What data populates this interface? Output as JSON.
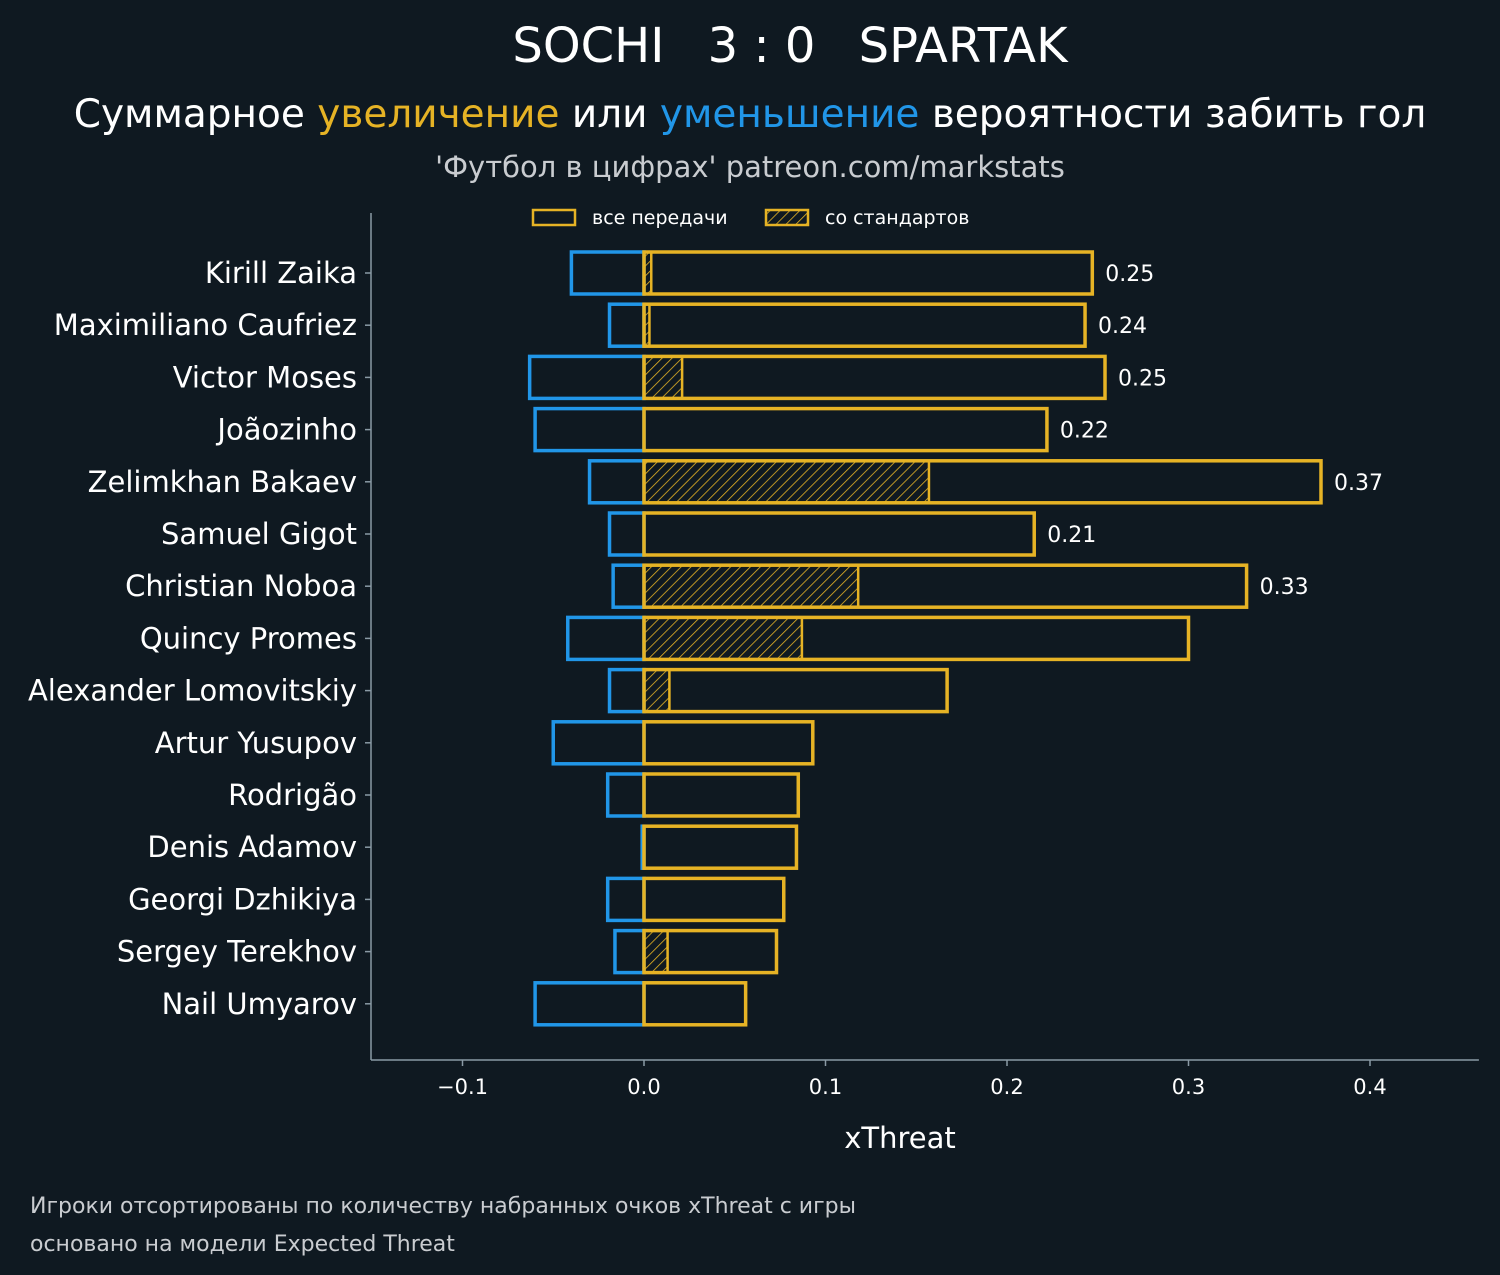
{
  "header": {
    "home_team": "SOCHI",
    "score": "3 : 0",
    "away_team": "SPARTAK",
    "subtitle_part1": "Суммарное ",
    "subtitle_increase": "увеличение",
    "subtitle_part2": " или ",
    "subtitle_decrease": "уменьшение",
    "subtitle_part3": " вероятности забить гол",
    "source": "'Футбол в цифрах' patreon.com/markstats"
  },
  "footer": {
    "note_line1": "Игроки отсортированы по количеству набранных очков xThreat с игры",
    "note_line2": "основано на модели Expected Threat"
  },
  "colors": {
    "background": "#0f1921",
    "increase": "#e6b325",
    "decrease": "#2196e8",
    "axis": "#8a9aa5"
  },
  "chart_data": {
    "type": "bar",
    "orientation": "horizontal",
    "xlabel": "xThreat",
    "xlim": [
      -0.15,
      0.46
    ],
    "xticks": [
      -0.1,
      0.0,
      0.1,
      0.2,
      0.3,
      0.4
    ],
    "xtick_labels": [
      "−0.1",
      "0.0",
      "0.1",
      "0.2",
      "0.3",
      "0.4"
    ],
    "legend": [
      {
        "label": "все передачи",
        "style": "outline"
      },
      {
        "label": "со стандартов",
        "style": "hatched"
      }
    ],
    "legend_position": "top-center",
    "categories": [
      "Kirill Zaika",
      "Maximiliano Caufriez",
      "Victor Moses",
      "Joãozinho",
      "Zelimkhan Bakaev",
      "Samuel Gigot",
      "Christian Noboa",
      "Quincy Promes",
      "Alexander Lomovitskiy",
      "Artur Yusupov",
      "Rodrigão",
      "Denis Adamov",
      "Georgi Dzhikiya",
      "Sergey Terekhov",
      "Nail Umyarov"
    ],
    "series": [
      {
        "name": "увеличение (все передачи)",
        "values": [
          0.247,
          0.243,
          0.254,
          0.222,
          0.373,
          0.215,
          0.332,
          0.3,
          0.167,
          0.093,
          0.085,
          0.084,
          0.077,
          0.073,
          0.056
        ]
      },
      {
        "name": "уменьшение (все передачи)",
        "values": [
          -0.04,
          -0.019,
          -0.063,
          -0.06,
          -0.03,
          -0.019,
          -0.017,
          -0.042,
          -0.019,
          -0.05,
          -0.02,
          -0.001,
          -0.02,
          -0.016,
          -0.06
        ]
      },
      {
        "name": "со стандартов",
        "values": [
          0.004,
          0.003,
          0.021,
          0.0,
          0.157,
          0.0,
          0.118,
          0.087,
          0.014,
          0.0,
          0.0,
          0.0,
          0.0,
          0.013,
          0.0
        ]
      }
    ],
    "value_labels": [
      "0.25",
      "0.24",
      "0.25",
      "0.22",
      "0.37",
      "0.21",
      "0.33",
      "",
      "",
      "",
      "",
      "",
      "",
      "",
      ""
    ]
  }
}
